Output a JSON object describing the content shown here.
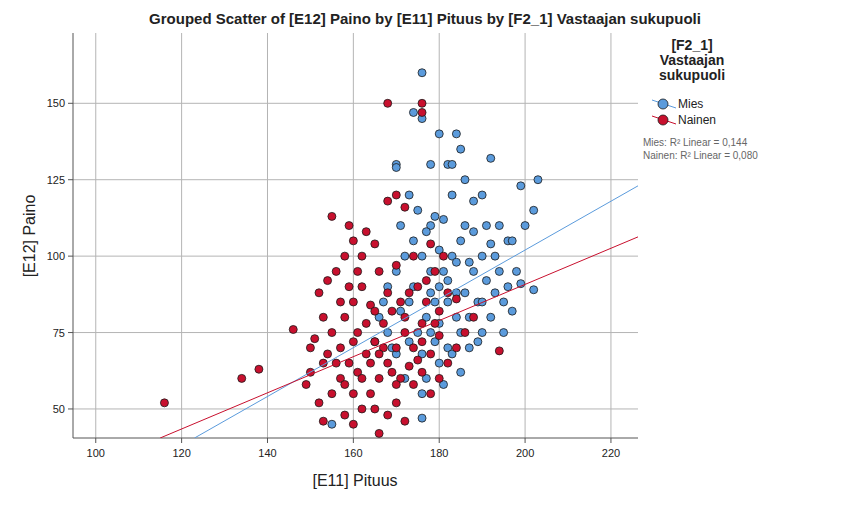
{
  "chart_data": {
    "type": "scatter",
    "title": "Grouped Scatter of [E12] Paino by [E11] Pituus by [F2_1] Vastaajan sukupuoli",
    "x_label": "[E11] Pituus",
    "y_label": "[E12] Paino",
    "legend_title": "[F2_1] Vastaajan sukupuoli",
    "annotations": [
      "Mies: R² Linear = 0,144",
      "Nainen: R² Linear = 0,080"
    ],
    "xlim": [
      94.7,
      226.3
    ],
    "ylim": [
      40.5,
      173
    ],
    "xticks": [
      100,
      120,
      140,
      160,
      180,
      200,
      220
    ],
    "yticks": [
      50,
      75,
      100,
      125,
      150
    ],
    "grid": true,
    "legend": "right",
    "marker": "circle",
    "series": [
      {
        "name": "Mies",
        "color": "#5b9bdc",
        "x": [
          176,
          174,
          176,
          180,
          184,
          185,
          178,
          170,
          170,
          182,
          183,
          192,
          186,
          203,
          199,
          202,
          202,
          176,
          155,
          173,
          183,
          190,
          188,
          179,
          181,
          178,
          196,
          200,
          197,
          191,
          193,
          199,
          198,
          196,
          193,
          191,
          189,
          187,
          185,
          182,
          180,
          177,
          176,
          172,
          170,
          168,
          166,
          168,
          170,
          172,
          174,
          176,
          178,
          180,
          182,
          184,
          186,
          188,
          190,
          185,
          183,
          181,
          179,
          177,
          175,
          173,
          171,
          169,
          174,
          178,
          180,
          182,
          184,
          186,
          188,
          190,
          192,
          194,
          195,
          187,
          183,
          179,
          176,
          173,
          181,
          185,
          189,
          171,
          167,
          175,
          177,
          180,
          178,
          184,
          187,
          194,
          192,
          165,
          190,
          195,
          197
        ],
        "values": [
          160,
          147,
          145,
          140,
          140,
          135,
          130,
          130,
          129,
          130,
          130,
          132,
          125,
          125,
          123,
          115,
          89,
          47,
          45,
          120,
          120,
          120,
          118,
          113,
          112,
          110,
          105,
          110,
          105,
          110,
          100,
          91,
          95,
          90,
          88,
          92,
          85,
          80,
          75,
          70,
          65,
          60,
          55,
          60,
          68,
          75,
          80,
          90,
          95,
          100,
          105,
          100,
          95,
          90,
          85,
          80,
          88,
          95,
          100,
          105,
          100,
          95,
          85,
          80,
          75,
          85,
          82,
          70,
          90,
          75,
          78,
          92,
          98,
          110,
          108,
          85,
          80,
          95,
          85,
          70,
          68,
          72,
          68,
          72,
          58,
          62,
          72,
          110,
          85,
          115,
          108,
          102,
          88,
          88,
          98,
          110,
          104,
          72,
          75,
          75,
          82
        ],
        "fit": {
          "x": [
            123,
            226.3
          ],
          "values": [
            40.5,
            123
          ]
        }
      },
      {
        "name": "Nainen",
        "color": "#c8102e",
        "x": [
          116,
          134,
          138,
          146,
          150,
          149,
          152,
          153,
          155,
          157,
          158,
          160,
          162,
          164,
          166,
          168,
          170,
          172,
          174,
          176,
          178,
          180,
          182,
          184,
          186,
          188,
          194,
          168,
          176,
          176,
          170,
          168,
          172,
          155,
          159,
          163,
          160,
          165,
          162,
          158,
          156,
          154,
          152,
          153,
          155,
          157,
          159,
          161,
          163,
          165,
          167,
          169,
          171,
          173,
          175,
          177,
          179,
          181,
          178,
          174,
          170,
          166,
          162,
          160,
          158,
          164,
          168,
          172,
          176,
          180,
          182,
          184,
          156,
          154,
          158,
          160,
          162,
          164,
          166,
          168,
          170,
          172,
          174,
          176,
          178,
          180,
          161,
          163,
          165,
          167,
          169,
          171,
          173,
          175,
          157,
          159,
          161,
          177,
          179,
          160,
          166,
          170,
          165,
          150,
          153,
          151
        ],
        "values": [
          52,
          60,
          63,
          76,
          70,
          58,
          52,
          46,
          55,
          60,
          48,
          45,
          50,
          55,
          42,
          48,
          52,
          46,
          58,
          62,
          55,
          60,
          65,
          70,
          75,
          80,
          69,
          150,
          150,
          147,
          120,
          118,
          116,
          113,
          110,
          108,
          105,
          104,
          100,
          100,
          95,
          92,
          88,
          80,
          75,
          70,
          65,
          62,
          68,
          72,
          78,
          82,
          85,
          88,
          90,
          92,
          95,
          100,
          104,
          100,
          97,
          95,
          90,
          85,
          80,
          84,
          88,
          80,
          78,
          82,
          88,
          86,
          65,
          68,
          58,
          55,
          60,
          65,
          60,
          65,
          70,
          75,
          70,
          72,
          68,
          74,
          75,
          78,
          82,
          70,
          62,
          60,
          64,
          66,
          85,
          90,
          95,
          85,
          78,
          72,
          68,
          58,
          50,
          62,
          65,
          73
        ],
        "fit": {
          "x": [
            115,
            226.3
          ],
          "values": [
            40.5,
            106.3
          ]
        }
      }
    ]
  }
}
